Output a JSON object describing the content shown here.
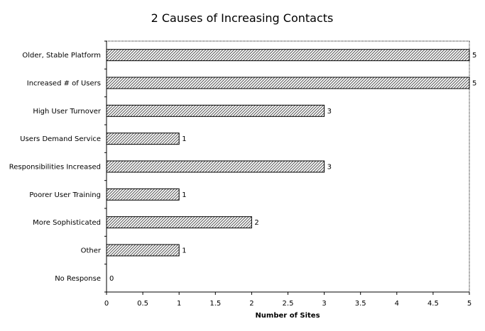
{
  "chart_data": {
    "type": "bar",
    "orientation": "horizontal",
    "title": "2 Causes of Increasing Contacts",
    "xlabel": "Number of Sites",
    "ylabel": "",
    "categories": [
      "Older, Stable Platform",
      "Increased # of Users",
      "High User Turnover",
      "Users Demand Service",
      "Responsibilities Increased",
      "Poorer User Training",
      "More Sophisticated",
      "Other",
      "No Response"
    ],
    "values": [
      5,
      5,
      3,
      1,
      3,
      1,
      2,
      1,
      0
    ],
    "xlim": [
      0,
      5
    ],
    "x_ticks": [
      "0",
      "0.5",
      "1",
      "1.5",
      "2",
      "2.5",
      "3",
      "3.5",
      "4",
      "4.5",
      "5"
    ],
    "grid": false,
    "legend": "none",
    "bar_fill": "#bdbdbd",
    "bar_stroke": "#000000"
  }
}
